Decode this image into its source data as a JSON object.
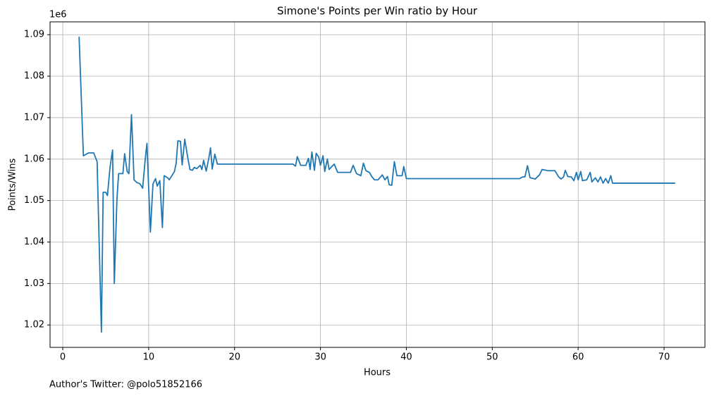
{
  "chart_data": {
    "type": "line",
    "title": "Simone's Points per Win ratio by Hour",
    "x_label": "Hours",
    "y_label": "Points/Wins",
    "y_offset_text": "1e6",
    "annotation": "Author's Twitter: @polo51852166",
    "grid": true,
    "color": "#1f77b4",
    "xlim": [
      -1.48,
      74.76
    ],
    "ylim": [
      1.0146,
      1.0931
    ],
    "xticks": [
      0,
      10,
      20,
      30,
      40,
      50,
      60,
      70
    ],
    "yticks": [
      1.02,
      1.03,
      1.04,
      1.05,
      1.06,
      1.07,
      1.08,
      1.09
    ],
    "x": [
      1.9,
      2.4,
      3.0,
      3.6,
      4.0,
      4.5,
      4.7,
      5.0,
      5.2,
      5.5,
      5.8,
      6.0,
      6.3,
      6.5,
      7.0,
      7.2,
      7.5,
      7.7,
      8.0,
      8.3,
      8.6,
      9.0,
      9.3,
      9.6,
      9.8,
      10.2,
      10.5,
      10.8,
      11.0,
      11.3,
      11.6,
      11.8,
      12.2,
      12.4,
      13.0,
      13.2,
      13.4,
      13.7,
      13.9,
      14.2,
      14.5,
      14.8,
      15.1,
      15.3,
      15.6,
      16.0,
      16.2,
      16.4,
      16.7,
      17.0,
      17.2,
      17.4,
      17.7,
      18.0,
      26.8,
      27.1,
      27.3,
      27.7,
      28.3,
      28.6,
      28.8,
      29.0,
      29.3,
      29.5,
      29.8,
      30.0,
      30.3,
      30.5,
      30.8,
      31.0,
      31.6,
      32.0,
      33.5,
      33.8,
      34.2,
      34.7,
      35.0,
      35.3,
      35.7,
      36.0,
      36.3,
      36.7,
      37.2,
      37.5,
      37.8,
      38.0,
      38.3,
      38.6,
      38.9,
      39.5,
      39.7,
      40.0,
      53.2,
      53.5,
      53.8,
      54.1,
      54.4,
      55.0,
      55.5,
      55.8,
      56.5,
      57.3,
      57.7,
      58.0,
      58.3,
      58.5,
      58.8,
      59.2,
      59.5,
      59.8,
      60.0,
      60.3,
      60.5,
      61.0,
      61.4,
      61.6,
      62.0,
      62.3,
      62.6,
      62.9,
      63.2,
      63.5,
      63.8,
      64.0,
      71.3
    ],
    "values": [
      1.0895,
      1.0608,
      1.0615,
      1.0615,
      1.0594,
      1.0183,
      1.052,
      1.052,
      1.0512,
      1.058,
      1.0622,
      1.03,
      1.05,
      1.0565,
      1.0565,
      1.0613,
      1.057,
      1.0565,
      1.0707,
      1.055,
      1.0544,
      1.054,
      1.053,
      1.06,
      1.0638,
      1.0424,
      1.054,
      1.0553,
      1.0535,
      1.0548,
      1.0435,
      1.056,
      1.0555,
      1.055,
      1.057,
      1.059,
      1.0644,
      1.0643,
      1.0586,
      1.0648,
      1.061,
      1.0575,
      1.0573,
      1.058,
      1.0577,
      1.0585,
      1.0575,
      1.0597,
      1.0571,
      1.0602,
      1.0627,
      1.0576,
      1.0612,
      1.0588,
      1.0588,
      1.0583,
      1.0606,
      1.0585,
      1.0585,
      1.0602,
      1.0575,
      1.0617,
      1.0573,
      1.0614,
      1.0605,
      1.0585,
      1.0608,
      1.057,
      1.06,
      1.0575,
      1.0588,
      1.0568,
      1.0568,
      1.0585,
      1.0565,
      1.056,
      1.059,
      1.0572,
      1.0568,
      1.0557,
      1.055,
      1.055,
      1.0562,
      1.055,
      1.0558,
      1.0538,
      1.0537,
      1.0594,
      1.056,
      1.056,
      1.0582,
      1.0553,
      1.0553,
      1.0557,
      1.0557,
      1.0584,
      1.0555,
      1.0552,
      1.0562,
      1.0575,
      1.0572,
      1.0572,
      1.0558,
      1.0552,
      1.0557,
      1.0573,
      1.0558,
      1.0557,
      1.0548,
      1.0568,
      1.055,
      1.057,
      1.0548,
      1.055,
      1.0568,
      1.0545,
      1.0555,
      1.0545,
      1.0557,
      1.0542,
      1.0553,
      1.0542,
      1.056,
      1.0542,
      1.0542
    ]
  }
}
